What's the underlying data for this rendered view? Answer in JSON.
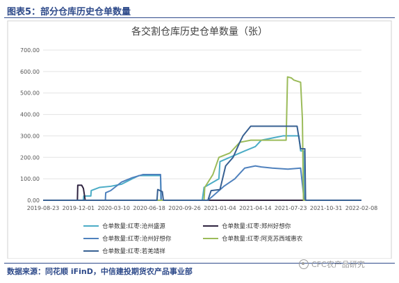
{
  "header": {
    "title": "图表5：部分仓库历史仓单数量"
  },
  "source": "数据来源：同花顺 iFinD，中信建投期货农产品事业部",
  "watermark": "CFC农产品研究",
  "colors": {
    "header_accent": "#2e4a8a"
  },
  "chart_data": {
    "type": "line",
    "title": "各交割仓库历史仓单数量（张）",
    "xlabel": "",
    "ylabel": "",
    "x_ticks": [
      "2019-08-23",
      "2019-12-01",
      "2020-03-10",
      "2020-06-18",
      "2020-09-26",
      "2021-01-04",
      "2021-04-14",
      "2021-07-23",
      "2021-10-31",
      "2022-02-08"
    ],
    "y_ticks": [
      "0.00",
      "100.00",
      "200.00",
      "300.00",
      "400.00",
      "500.00",
      "600.00",
      "700.00"
    ],
    "xlim": [
      "2019-08-23",
      "2022-02-08"
    ],
    "ylim": [
      0,
      700
    ],
    "grid": "horizontal",
    "legend_position": "bottom",
    "series": [
      {
        "name": "仓单数量:红枣:沧州盛源",
        "color": "#4bacc6",
        "points": [
          [
            "2019-08-23",
            0
          ],
          [
            "2019-12-15",
            0
          ],
          [
            "2019-12-16",
            20
          ],
          [
            "2020-01-05",
            20
          ],
          [
            "2020-01-06",
            45
          ],
          [
            "2020-01-30",
            60
          ],
          [
            "2020-03-01",
            65
          ],
          [
            "2020-04-01",
            75
          ],
          [
            "2020-05-01",
            100
          ],
          [
            "2020-05-20",
            115
          ],
          [
            "2020-07-20",
            115
          ],
          [
            "2020-07-21",
            0
          ],
          [
            "2020-11-15",
            0
          ],
          [
            "2020-11-20",
            60
          ],
          [
            "2021-01-01",
            100
          ],
          [
            "2021-01-04",
            180
          ],
          [
            "2021-02-15",
            210
          ],
          [
            "2021-03-15",
            230
          ],
          [
            "2021-04-14",
            250
          ],
          [
            "2021-05-01",
            280
          ],
          [
            "2021-06-01",
            290
          ],
          [
            "2021-07-01",
            300
          ],
          [
            "2021-08-15",
            300
          ],
          [
            "2021-08-20",
            230
          ],
          [
            "2021-08-28",
            230
          ],
          [
            "2021-08-30",
            0
          ],
          [
            "2022-02-08",
            0
          ]
        ]
      },
      {
        "name": "仓单数量:红枣:郑州好想你",
        "color": "#2f2340",
        "points": [
          [
            "2019-08-23",
            0
          ],
          [
            "2019-11-28",
            0
          ],
          [
            "2019-11-29",
            70
          ],
          [
            "2019-12-10",
            70
          ],
          [
            "2019-12-15",
            55
          ],
          [
            "2019-12-20",
            0
          ],
          [
            "2022-02-08",
            0
          ]
        ]
      },
      {
        "name": "仓单数量:红枣:沧州好想你",
        "color": "#4f81bd",
        "points": [
          [
            "2019-08-23",
            0
          ],
          [
            "2020-02-15",
            0
          ],
          [
            "2020-02-16",
            35
          ],
          [
            "2020-03-01",
            45
          ],
          [
            "2020-04-01",
            85
          ],
          [
            "2020-05-01",
            105
          ],
          [
            "2020-06-01",
            120
          ],
          [
            "2020-07-20",
            120
          ],
          [
            "2020-07-22",
            0
          ],
          [
            "2020-12-01",
            0
          ],
          [
            "2020-12-15",
            20
          ],
          [
            "2021-01-15",
            65
          ],
          [
            "2021-02-15",
            100
          ],
          [
            "2021-03-15",
            150
          ],
          [
            "2021-04-14",
            160
          ],
          [
            "2021-05-01",
            155
          ],
          [
            "2021-06-01",
            150
          ],
          [
            "2021-07-15",
            145
          ],
          [
            "2021-08-20",
            150
          ],
          [
            "2021-08-30",
            0
          ],
          [
            "2022-02-08",
            0
          ]
        ]
      },
      {
        "name": "仓单数量:红枣:阿克苏西域惠农",
        "color": "#9bbb59",
        "points": [
          [
            "2019-08-23",
            0
          ],
          [
            "2020-11-20",
            0
          ],
          [
            "2020-11-22",
            60
          ],
          [
            "2020-12-15",
            120
          ],
          [
            "2021-01-01",
            200
          ],
          [
            "2021-02-01",
            220
          ],
          [
            "2021-03-01",
            270
          ],
          [
            "2021-04-01",
            280
          ],
          [
            "2021-06-15",
            280
          ],
          [
            "2021-07-10",
            280
          ],
          [
            "2021-07-14",
            575
          ],
          [
            "2021-07-25",
            570
          ],
          [
            "2021-08-01",
            560
          ],
          [
            "2021-08-20",
            550
          ],
          [
            "2021-08-25",
            380
          ],
          [
            "2021-08-28",
            0
          ],
          [
            "2022-02-08",
            0
          ]
        ]
      },
      {
        "name": "仓单数量:红枣:若羌靖祥",
        "color": "#376092",
        "points": [
          [
            "2019-08-23",
            0
          ],
          [
            "2020-07-10",
            0
          ],
          [
            "2020-07-12",
            50
          ],
          [
            "2020-07-25",
            40
          ],
          [
            "2020-07-28",
            0
          ],
          [
            "2020-12-01",
            0
          ],
          [
            "2020-12-10",
            45
          ],
          [
            "2021-01-04",
            50
          ],
          [
            "2021-01-20",
            160
          ],
          [
            "2021-02-10",
            200
          ],
          [
            "2021-03-01",
            270
          ],
          [
            "2021-03-10",
            300
          ],
          [
            "2021-04-01",
            345
          ],
          [
            "2021-08-10",
            345
          ],
          [
            "2021-08-20",
            240
          ],
          [
            "2021-09-01",
            240
          ],
          [
            "2021-09-03",
            0
          ],
          [
            "2022-02-08",
            0
          ]
        ]
      }
    ]
  }
}
